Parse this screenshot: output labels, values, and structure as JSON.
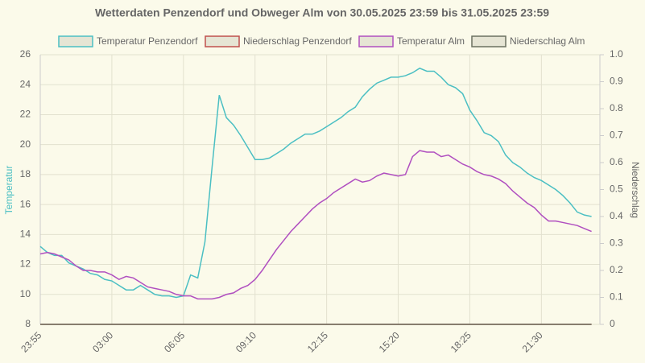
{
  "chart_data": {
    "type": "line",
    "title": "Wetterdaten Penzendorf und Obweger Alm von 30.05.2025 23:59 bis 31.05.2025 23:59",
    "ylabel": "Temperatur",
    "y2label": "Niederschlag",
    "categories": [
      "23:55",
      null,
      null,
      null,
      null,
      null,
      null,
      null,
      null,
      null,
      "03:00",
      null,
      null,
      null,
      null,
      null,
      null,
      null,
      null,
      null,
      "06:05",
      null,
      null,
      null,
      null,
      null,
      null,
      null,
      null,
      null,
      "09:10",
      null,
      null,
      null,
      null,
      null,
      null,
      null,
      null,
      null,
      "12:15",
      null,
      null,
      null,
      null,
      null,
      null,
      null,
      null,
      null,
      "15:20",
      null,
      null,
      null,
      null,
      null,
      null,
      null,
      null,
      null,
      "18:25",
      null,
      null,
      null,
      null,
      null,
      null,
      null,
      null,
      null,
      "21:30",
      null,
      null,
      null,
      null,
      null,
      null,
      null
    ],
    "series": [
      {
        "name": "Temperatur Penzendorf",
        "color": "#4bbfc3",
        "axis": "y",
        "values": [
          13.2,
          12.8,
          12.6,
          12.6,
          12.1,
          11.9,
          11.7,
          11.4,
          11.3,
          11.0,
          10.9,
          10.6,
          10.3,
          10.3,
          10.6,
          10.3,
          10.0,
          9.9,
          9.9,
          9.8,
          9.9,
          11.3,
          11.1,
          13.5,
          18.5,
          23.3,
          21.8,
          21.3,
          20.6,
          19.8,
          19.0,
          19.0,
          19.1,
          19.4,
          19.7,
          20.1,
          20.4,
          20.7,
          20.7,
          20.9,
          21.2,
          21.5,
          21.8,
          22.2,
          22.5,
          23.2,
          23.7,
          24.1,
          24.3,
          24.5,
          24.5,
          24.6,
          24.8,
          25.1,
          24.9,
          24.9,
          24.5,
          24.0,
          23.8,
          23.4,
          22.3,
          21.6,
          20.8,
          20.6,
          20.2,
          19.3,
          18.8,
          18.5,
          18.1,
          17.8,
          17.6,
          17.3,
          17.0,
          16.6,
          16.1,
          15.5,
          15.3,
          15.2
        ]
      },
      {
        "name": "Niederschlag Penzendorf",
        "color": "#c0504d",
        "axis": "y2",
        "values": [
          0,
          0,
          0,
          0,
          0,
          0,
          0,
          0,
          0,
          0,
          0,
          0,
          0,
          0,
          0,
          0,
          0,
          0,
          0,
          0,
          0,
          0,
          0,
          0,
          0,
          0,
          0,
          0,
          0,
          0,
          0,
          0,
          0,
          0,
          0,
          0,
          0,
          0,
          0,
          0,
          0,
          0,
          0,
          0,
          0,
          0,
          0,
          0,
          0,
          0,
          0,
          0,
          0,
          0,
          0,
          0,
          0,
          0,
          0,
          0,
          0,
          0,
          0,
          0,
          0,
          0,
          0,
          0,
          0,
          0,
          0,
          0,
          0,
          0,
          0,
          0,
          0,
          0
        ]
      },
      {
        "name": "Temperatur Alm",
        "color": "#b04fc0",
        "axis": "y",
        "values": [
          12.7,
          12.8,
          12.7,
          12.5,
          12.3,
          11.9,
          11.6,
          11.6,
          11.5,
          11.5,
          11.3,
          11.0,
          11.2,
          11.1,
          10.8,
          10.5,
          10.4,
          10.3,
          10.2,
          10.0,
          9.9,
          9.9,
          9.7,
          9.7,
          9.7,
          9.8,
          10.0,
          10.1,
          10.4,
          10.6,
          11.0,
          11.6,
          12.3,
          13.0,
          13.6,
          14.2,
          14.7,
          15.2,
          15.7,
          16.1,
          16.4,
          16.8,
          17.1,
          17.4,
          17.7,
          17.5,
          17.6,
          17.9,
          18.1,
          18.0,
          17.9,
          18.0,
          19.2,
          19.6,
          19.5,
          19.5,
          19.2,
          19.3,
          19.0,
          18.7,
          18.5,
          18.2,
          18.0,
          17.9,
          17.7,
          17.4,
          16.9,
          16.5,
          16.1,
          15.8,
          15.3,
          14.9,
          14.9,
          14.8,
          14.7,
          14.6,
          14.4,
          14.2
        ]
      },
      {
        "name": "Niederschlag Alm",
        "color": "#6b7060",
        "axis": "y2",
        "values": [
          0,
          0,
          0,
          0,
          0,
          0,
          0,
          0,
          0,
          0,
          0,
          0,
          0,
          0,
          0,
          0,
          0,
          0,
          0,
          0,
          0,
          0,
          0,
          0,
          0,
          0,
          0,
          0,
          0,
          0,
          0,
          0,
          0,
          0,
          0,
          0,
          0,
          0,
          0,
          0,
          0,
          0,
          0,
          0,
          0,
          0,
          0,
          0,
          0,
          0,
          0,
          0,
          0,
          0,
          0,
          0,
          0,
          0,
          0,
          0,
          0,
          0,
          0,
          0,
          0,
          0,
          0,
          0,
          0,
          0,
          0,
          0,
          0,
          0,
          0,
          0,
          0,
          0
        ]
      }
    ],
    "ylim": [
      8,
      26
    ],
    "yticks": [
      8,
      10,
      12,
      14,
      16,
      18,
      20,
      22,
      24,
      26
    ],
    "y2lim": [
      0,
      1
    ],
    "y2ticks": [
      0,
      0.1,
      0.2,
      0.3,
      0.4,
      0.5,
      0.6,
      0.7,
      0.8,
      0.9,
      {
        "value": 1,
        "label": "1.0"
      }
    ],
    "grid": true,
    "legend": "top"
  }
}
